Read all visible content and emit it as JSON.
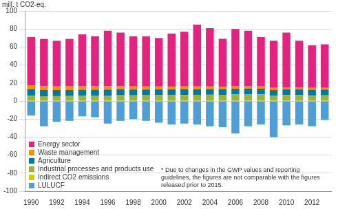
{
  "chart_data": {
    "type": "bar",
    "stacked": true,
    "grid": true,
    "legend": "lower left",
    "ylabel": "mill. t CO2-eq.",
    "annotations": [
      "* Due to changes in the GWP values and reporting guidelines, the figures are not comparable with the figures released prior to 2015."
    ],
    "categories": [
      "1990",
      null,
      "1992",
      null,
      "1994",
      null,
      "1996",
      null,
      "1998",
      null,
      "2000",
      null,
      "2002",
      null,
      "2004",
      null,
      "2006",
      null,
      "2008",
      null,
      "2010",
      null,
      "2012",
      null
    ],
    "ylim": [
      -100,
      100
    ],
    "yticks": [
      -100,
      -80,
      -60,
      -40,
      -20,
      0,
      20,
      40,
      60,
      80,
      100
    ],
    "series": [
      {
        "name": "LULUCF",
        "color": "#4f9fd6",
        "values": [
          -16,
          -28,
          -23,
          -22,
          -17,
          -18,
          -25,
          -22,
          -20,
          -22,
          -24,
          -26,
          -25,
          -26,
          -28,
          -29,
          -36,
          -28,
          -26,
          -40,
          -27,
          -26,
          -28,
          -21
        ]
      },
      {
        "name": "Indirect CO2 emissions",
        "color": "#c9d200",
        "values": [
          0.3,
          0.3,
          0.3,
          0.3,
          0.3,
          0.3,
          0.3,
          0.3,
          0.3,
          0.3,
          0.3,
          0.3,
          0.3,
          0.3,
          0.3,
          0.3,
          0.3,
          0.3,
          0.3,
          0.3,
          0.3,
          0.3,
          0.3,
          0.3
        ]
      },
      {
        "name": "Industrial processes and products use",
        "color": "#9cb23a",
        "values": [
          5.5,
          5.0,
          5.1,
          5.3,
          5.6,
          5.7,
          5.8,
          6.1,
          6.0,
          6.1,
          6.2,
          6.2,
          6.4,
          6.6,
          6.7,
          6.5,
          7.0,
          7.3,
          7.1,
          5.6,
          6.3,
          6.2,
          5.9,
          6.0
        ]
      },
      {
        "name": "Agriculture",
        "color": "#00799f",
        "values": [
          7.5,
          7.1,
          6.8,
          6.7,
          6.7,
          6.6,
          6.6,
          6.6,
          6.5,
          6.4,
          6.4,
          6.4,
          6.4,
          6.3,
          6.3,
          6.3,
          6.3,
          6.3,
          6.3,
          6.3,
          6.3,
          6.4,
          6.4,
          6.4
        ]
      },
      {
        "name": "Waste management",
        "color": "#f39200",
        "values": [
          4.3,
          4.2,
          4.1,
          4.0,
          3.9,
          3.8,
          3.7,
          3.6,
          3.5,
          3.4,
          3.3,
          3.2,
          3.1,
          3.0,
          2.9,
          2.8,
          2.7,
          2.6,
          2.5,
          2.4,
          2.3,
          2.2,
          2.1,
          2.0
        ]
      },
      {
        "name": "Energy sector",
        "color": "#e2237f",
        "values": [
          53.4,
          52.4,
          50.7,
          52.7,
          57.5,
          55.6,
          61.6,
          59.4,
          55.7,
          55.8,
          53.8,
          58.9,
          60.8,
          68.8,
          64.8,
          53.1,
          63.7,
          61.5,
          54.8,
          52.4,
          60.8,
          51.9,
          47.3,
          48.3
        ]
      }
    ]
  }
}
